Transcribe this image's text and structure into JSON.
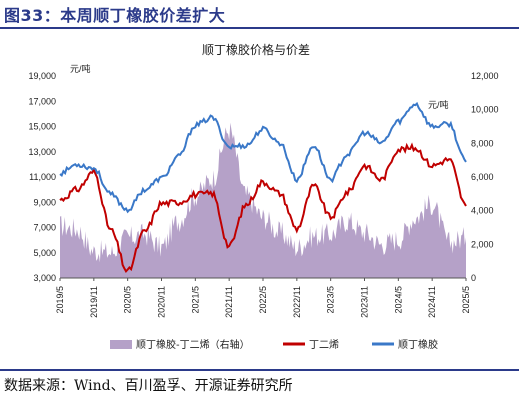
{
  "figure": {
    "title": "图33：本周顺丁橡胶价差扩大",
    "source": "数据来源：Wind、百川盈孚、开源证券研究所"
  },
  "colors": {
    "brand": "#2b3a8a",
    "spread": "#b5a1c8",
    "butadiene": "#c00000",
    "br_rubber": "#3a78c8"
  },
  "chart_data": {
    "type": "line",
    "title": "顺丁橡胶价格与价差",
    "left_axis": {
      "unit": "元/吨",
      "ylim": [
        3000,
        19000
      ],
      "ticks": [
        3000,
        5000,
        7000,
        9000,
        11000,
        13000,
        15000,
        17000,
        19000
      ]
    },
    "right_axis": {
      "unit": "元/吨",
      "ylim": [
        0,
        12000
      ],
      "ticks": [
        0,
        2000,
        4000,
        6000,
        8000,
        10000,
        12000
      ]
    },
    "x_ticks": [
      "2019/5",
      "2019/11",
      "2020/5",
      "2020/11",
      "2021/5",
      "2021/11",
      "2022/5",
      "2022/11",
      "2023/5",
      "2023/11",
      "2024/5",
      "2024/11",
      "2025/5"
    ],
    "legend_position": "bottom",
    "x": [
      "2019/5",
      "2019/8",
      "2019/11",
      "2020/2",
      "2020/5",
      "2020/8",
      "2020/11",
      "2021/2",
      "2021/5",
      "2021/8",
      "2021/11",
      "2022/2",
      "2022/5",
      "2022/8",
      "2022/11",
      "2023/2",
      "2023/5",
      "2023/8",
      "2023/11",
      "2024/2",
      "2024/5",
      "2024/8",
      "2024/11",
      "2025/2",
      "2025/5"
    ],
    "series": [
      {
        "name": "顺丁橡胶-丁二烯（右轴）",
        "type": "area",
        "axis": "right",
        "values": [
          3100,
          2900,
          1600,
          1500,
          2400,
          2600,
          1800,
          3400,
          4900,
          5900,
          8800,
          4900,
          3600,
          2700,
          1800,
          2500,
          2600,
          3400,
          2700,
          2000,
          2300,
          3600,
          4400,
          2100,
          2400
        ]
      },
      {
        "name": "丁二烯",
        "type": "line",
        "axis": "left",
        "values": [
          9200,
          10000,
          11400,
          6800,
          3500,
          6700,
          8900,
          9000,
          9600,
          9700,
          5500,
          8800,
          10600,
          9700,
          6900,
          10300,
          7800,
          9800,
          11900,
          10800,
          13200,
          13300,
          11900,
          12400,
          8700
        ]
      },
      {
        "name": "顺丁橡胶",
        "type": "line",
        "axis": "left",
        "values": [
          11300,
          12000,
          11700,
          9600,
          8400,
          10000,
          10900,
          12600,
          15100,
          15700,
          13400,
          13500,
          14800,
          13700,
          10800,
          13500,
          10800,
          12800,
          14500,
          13700,
          15400,
          16800,
          15000,
          15200,
          12200
        ]
      }
    ]
  }
}
